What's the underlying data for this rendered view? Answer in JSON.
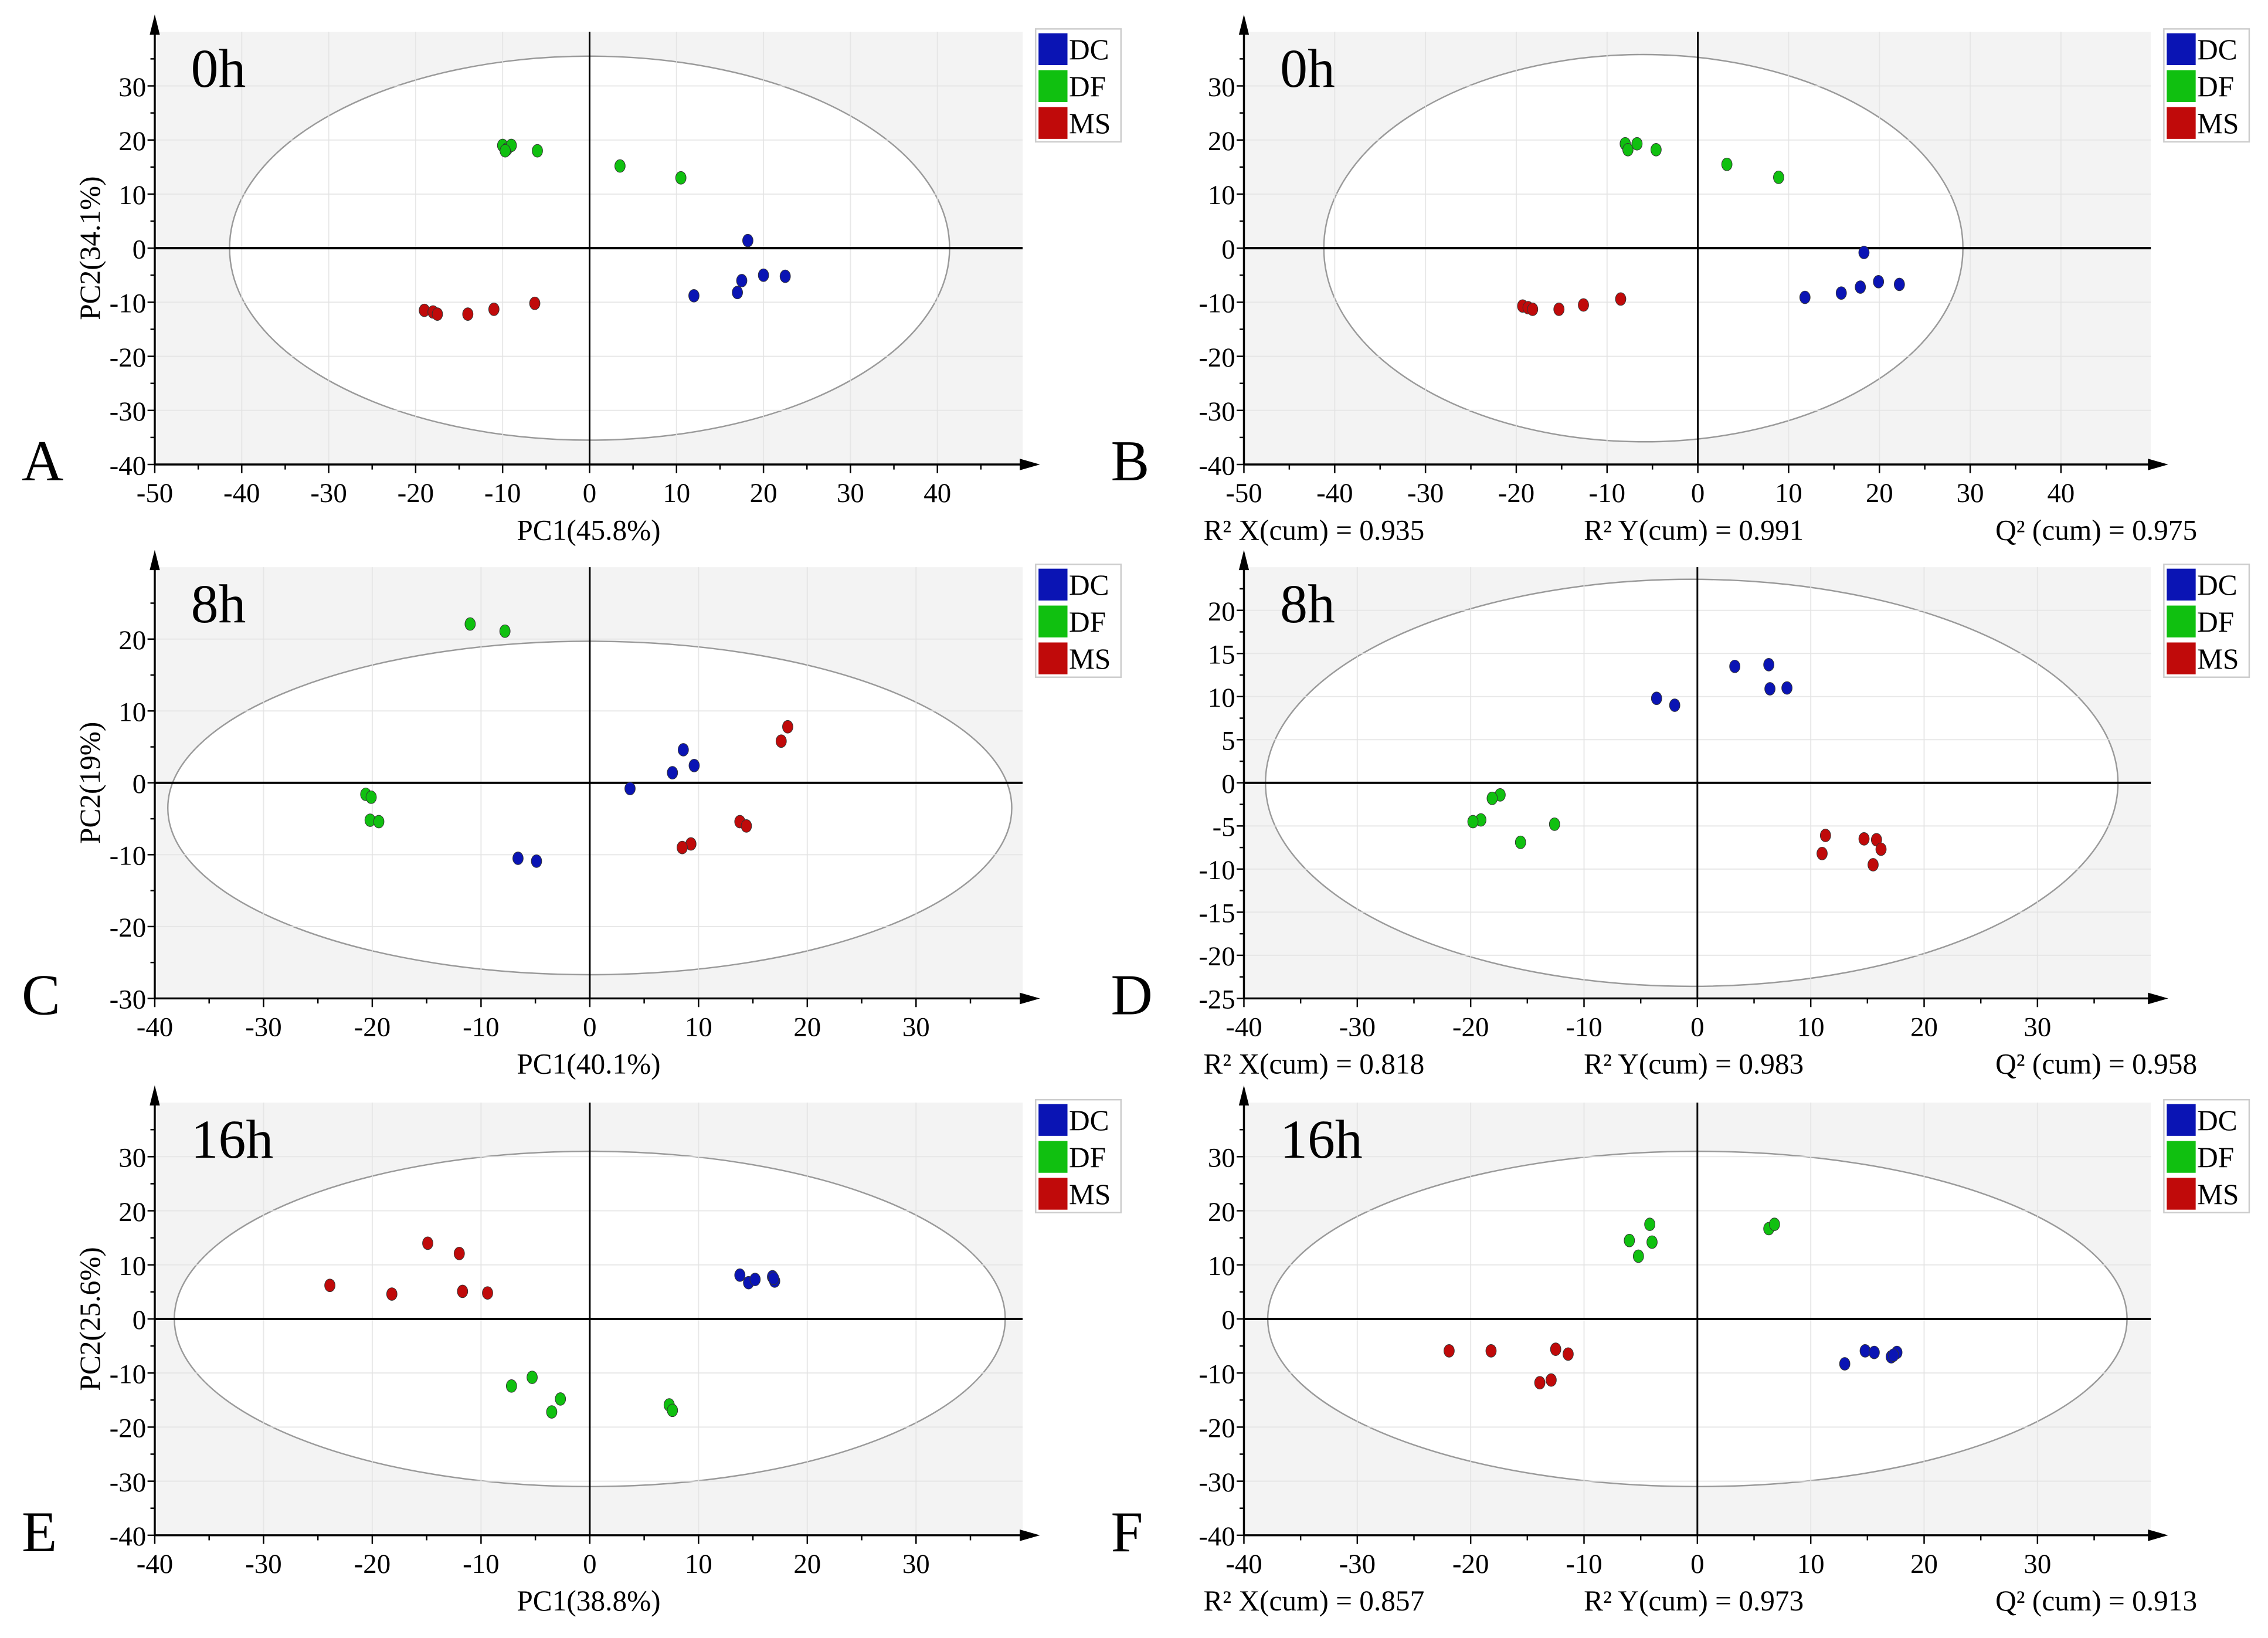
{
  "colors": {
    "DC": "#0a14b4",
    "DF": "#10c010",
    "MS": "#c00a0a",
    "plot_bg": "#f3f3f3",
    "grid": "#e2e2e2",
    "ellipse": "#9a9a9a"
  },
  "chart_data": [
    {
      "id": "A",
      "type": "scatter",
      "panel_label": "A",
      "title": "0h",
      "xlabel": "PC1(45.8%)",
      "ylabel": "PC2(34.1%)",
      "xlim": [
        -50,
        49.8
      ],
      "ylim": [
        -40,
        40
      ],
      "xticks": [
        -50,
        -40,
        -30,
        -20,
        -10,
        0,
        10,
        20,
        30,
        40
      ],
      "yticks": [
        -40,
        -30,
        -20,
        -10,
        0,
        10,
        20,
        30
      ],
      "legend": [
        "DC",
        "DF",
        "MS"
      ],
      "legend_position": "top-right",
      "ellipse": {
        "cx": 0,
        "cy": 0,
        "rx": 41.4,
        "ry": 35.5
      },
      "stats": [],
      "series": [
        {
          "name": "DC",
          "points": [
            [
              18.2,
              1.4
            ],
            [
              20,
              -5
            ],
            [
              22.5,
              -5.2
            ],
            [
              17.5,
              -6
            ],
            [
              17,
              -8.2
            ],
            [
              12,
              -8.8
            ]
          ]
        },
        {
          "name": "DF",
          "points": [
            [
              -10,
              19
            ],
            [
              -9.5,
              18.3
            ],
            [
              -9,
              19
            ],
            [
              -9.7,
              18
            ],
            [
              -6,
              18
            ],
            [
              3.5,
              15.2
            ],
            [
              10.5,
              13
            ]
          ]
        },
        {
          "name": "MS",
          "points": [
            [
              -19,
              -11.5
            ],
            [
              -18,
              -11.8
            ],
            [
              -17.5,
              -12.2
            ],
            [
              -14,
              -12.2
            ],
            [
              -11,
              -11.3
            ],
            [
              -6.3,
              -10.2
            ]
          ]
        }
      ]
    },
    {
      "id": "B",
      "type": "scatter",
      "panel_label": "B",
      "title": "0h",
      "xlabel": "",
      "ylabel": "",
      "xlim": [
        -50,
        49.9
      ],
      "ylim": [
        -40,
        40
      ],
      "xticks": [
        -50,
        -40,
        -30,
        -20,
        -10,
        0,
        10,
        20,
        30,
        40
      ],
      "yticks": [
        -40,
        -30,
        -20,
        -10,
        0,
        10,
        20,
        30
      ],
      "legend": [
        "DC",
        "DF",
        "MS"
      ],
      "legend_position": "top-right",
      "ellipse": {
        "cx": -6,
        "cy": 0,
        "rx": 35.2,
        "ry": 35.8
      },
      "stats": [
        "R² X(cum) = 0.935",
        "R² Y(cum) = 0.991",
        "Q² (cum) =  0.975"
      ],
      "series": [
        {
          "name": "DC",
          "points": [
            [
              18.3,
              -0.8
            ],
            [
              11.8,
              -9.1
            ],
            [
              15.8,
              -8.3
            ],
            [
              17.9,
              -7.2
            ],
            [
              19.9,
              -6.2
            ],
            [
              22.2,
              -6.7
            ]
          ]
        },
        {
          "name": "DF",
          "points": [
            [
              -8,
              19.3
            ],
            [
              -7.7,
              18.2
            ],
            [
              -6.7,
              19.3
            ],
            [
              -4.6,
              18.2
            ],
            [
              3.2,
              15.5
            ],
            [
              8.9,
              13.1
            ]
          ]
        },
        {
          "name": "MS",
          "points": [
            [
              -19.3,
              -10.7
            ],
            [
              -18.7,
              -11
            ],
            [
              -18.2,
              -11.3
            ],
            [
              -15.3,
              -11.3
            ],
            [
              -12.6,
              -10.5
            ],
            [
              -8.5,
              -9.4
            ]
          ]
        }
      ]
    },
    {
      "id": "C",
      "type": "scatter",
      "panel_label": "C",
      "title": "8h",
      "xlabel": "PC1(40.1%)",
      "ylabel": "PC2(19%)",
      "xlim": [
        -40,
        39.8
      ],
      "ylim": [
        -30,
        30
      ],
      "xticks": [
        -40,
        -30,
        -20,
        -10,
        0,
        10,
        20,
        30
      ],
      "yticks": [
        -30,
        -20,
        -10,
        0,
        10,
        20
      ],
      "legend": [
        "DC",
        "DF",
        "MS"
      ],
      "legend_position": "top-right",
      "ellipse": {
        "cx": 0,
        "cy": -3.5,
        "rx": 38.8,
        "ry": 23.2
      },
      "stats": [],
      "series": [
        {
          "name": "DC",
          "points": [
            [
              8.6,
              4.6
            ],
            [
              9.6,
              2.4
            ],
            [
              7.6,
              1.4
            ],
            [
              3.7,
              -0.8
            ],
            [
              -6.6,
              -10.5
            ],
            [
              -4.9,
              -10.9
            ]
          ]
        },
        {
          "name": "DF",
          "points": [
            [
              -11,
              22.1
            ],
            [
              -7.8,
              21.1
            ],
            [
              -20.6,
              -1.6
            ],
            [
              -20.1,
              -2
            ],
            [
              -20.2,
              -5.2
            ],
            [
              -19.4,
              -5.4
            ]
          ]
        },
        {
          "name": "MS",
          "points": [
            [
              18.2,
              7.8
            ],
            [
              17.6,
              5.8
            ],
            [
              13.8,
              -5.4
            ],
            [
              14.4,
              -6
            ],
            [
              9.3,
              -8.5
            ],
            [
              8.5,
              -9
            ]
          ]
        }
      ]
    },
    {
      "id": "D",
      "type": "scatter",
      "panel_label": "D",
      "title": "8h",
      "xlabel": "",
      "ylabel": "",
      "xlim": [
        -40,
        40
      ],
      "ylim": [
        -25,
        25
      ],
      "xticks": [
        -40,
        -30,
        -20,
        -10,
        0,
        10,
        20,
        30
      ],
      "yticks": [
        -25,
        -20,
        -15,
        -10,
        -5,
        0,
        5,
        10,
        15,
        20
      ],
      "legend": [
        "DC",
        "DF",
        "MS"
      ],
      "legend_position": "top-right",
      "ellipse": {
        "cx": -0.5,
        "cy": 0,
        "rx": 37.6,
        "ry": 23.6
      },
      "stats": [
        "R² X(cum) = 0.818",
        "R² Y(cum) = 0.983",
        "Q² (cum) = 0.958"
      ],
      "series": [
        {
          "name": "DC",
          "points": [
            [
              3.3,
              13.5
            ],
            [
              6.3,
              13.7
            ],
            [
              6.4,
              10.9
            ],
            [
              7.9,
              11
            ],
            [
              -3.6,
              9.8
            ],
            [
              -2,
              9
            ]
          ]
        },
        {
          "name": "DF",
          "points": [
            [
              -17.4,
              -1.4
            ],
            [
              -18.1,
              -1.8
            ],
            [
              -19.1,
              -4.3
            ],
            [
              -19.8,
              -4.5
            ],
            [
              -12.6,
              -4.8
            ],
            [
              -15.6,
              -6.9
            ]
          ]
        },
        {
          "name": "MS",
          "points": [
            [
              11.3,
              -6.1
            ],
            [
              11,
              -8.2
            ],
            [
              14.7,
              -6.5
            ],
            [
              15.8,
              -6.6
            ],
            [
              16.2,
              -7.7
            ],
            [
              15.5,
              -9.5
            ]
          ]
        }
      ]
    },
    {
      "id": "E",
      "type": "scatter",
      "panel_label": "E",
      "title": "16h",
      "xlabel": "PC1(38.8%)",
      "ylabel": "PC2(25.6%)",
      "xlim": [
        -40,
        39.8
      ],
      "ylim": [
        -40,
        40
      ],
      "xticks": [
        -40,
        -30,
        -20,
        -10,
        0,
        10,
        20,
        30
      ],
      "yticks": [
        -40,
        -30,
        -20,
        -10,
        0,
        10,
        20,
        30
      ],
      "legend": [
        "DC",
        "DF",
        "MS"
      ],
      "legend_position": "top-right",
      "ellipse": {
        "cx": 0,
        "cy": 0,
        "rx": 38.2,
        "ry": 31
      },
      "stats": [],
      "series": [
        {
          "name": "DC",
          "points": [
            [
              13.8,
              8.1
            ],
            [
              14.6,
              6.7
            ],
            [
              15.2,
              7.3
            ],
            [
              16.8,
              7.8
            ],
            [
              17,
              7
            ],
            [
              16.9,
              7.5
            ]
          ]
        },
        {
          "name": "DF",
          "points": [
            [
              -7.2,
              -12.4
            ],
            [
              -5.3,
              -10.8
            ],
            [
              -2.7,
              -14.8
            ],
            [
              -3.5,
              -17.2
            ],
            [
              7.3,
              -15.9
            ],
            [
              7.6,
              -16.9
            ]
          ]
        },
        {
          "name": "MS",
          "points": [
            [
              -23.9,
              6.2
            ],
            [
              -18.2,
              4.6
            ],
            [
              -14.9,
              14
            ],
            [
              -12,
              12.1
            ],
            [
              -11.7,
              5.1
            ],
            [
              -9.4,
              4.8
            ]
          ]
        }
      ]
    },
    {
      "id": "F",
      "type": "scatter",
      "panel_label": "F",
      "title": "16h",
      "xlabel": "",
      "ylabel": "",
      "xlim": [
        -40,
        40
      ],
      "ylim": [
        -40,
        40
      ],
      "xticks": [
        -40,
        -30,
        -20,
        -10,
        0,
        10,
        20,
        30
      ],
      "yticks": [
        -40,
        -30,
        -20,
        -10,
        0,
        10,
        20,
        30
      ],
      "legend": [
        "DC",
        "DF",
        "MS"
      ],
      "legend_position": "top-right",
      "ellipse": {
        "cx": 0,
        "cy": 0,
        "rx": 37.9,
        "ry": 31
      },
      "stats": [
        "R² X(cum) = 0.857",
        "R² Y(cum) = 0.973",
        "Q² (cum) = 0.913"
      ],
      "series": [
        {
          "name": "DC",
          "points": [
            [
              13,
              -8.3
            ],
            [
              14.8,
              -5.9
            ],
            [
              15.6,
              -6.2
            ],
            [
              17.1,
              -7
            ],
            [
              17.6,
              -6.2
            ],
            [
              17.3,
              -6.7
            ]
          ]
        },
        {
          "name": "DF",
          "points": [
            [
              -4.2,
              17.5
            ],
            [
              -6,
              14.5
            ],
            [
              -4,
              14.2
            ],
            [
              -5.2,
              11.6
            ],
            [
              6.3,
              16.7
            ],
            [
              6.8,
              17.5
            ]
          ]
        },
        {
          "name": "MS",
          "points": [
            [
              -21.9,
              -5.9
            ],
            [
              -18.2,
              -5.9
            ],
            [
              -12.5,
              -5.6
            ],
            [
              -11.4,
              -6.5
            ],
            [
              -13.9,
              -11.8
            ],
            [
              -12.9,
              -11.3
            ]
          ]
        }
      ]
    }
  ]
}
